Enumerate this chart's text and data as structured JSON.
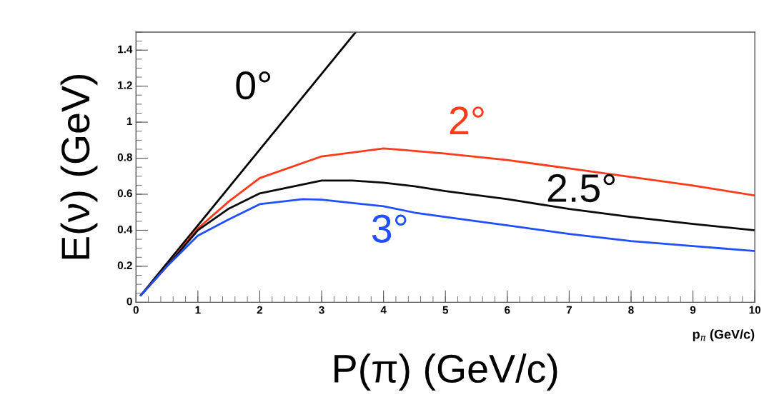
{
  "chart_data": {
    "type": "line",
    "xlabel": "P(π) (GeV/c)",
    "ylabel": "E(ν) (GeV)",
    "annotations": [
      "p$_{π}$ (GeV/c)"
    ],
    "xlim": [
      0,
      10
    ],
    "ylim": [
      0,
      1.5
    ],
    "xticks": [
      0,
      1,
      2,
      3,
      4,
      5,
      6,
      7,
      8,
      9,
      10
    ],
    "yticks": [
      0,
      0.2,
      0.4,
      0.6,
      0.8,
      1,
      1.2,
      1.4
    ],
    "grid": false,
    "legend": false,
    "marker": "none",
    "line_style": "solid",
    "series": [
      {
        "name": "0°",
        "color": "#000000",
        "x": [
          0.08,
          3.55
        ],
        "values": [
          0.04,
          1.5
        ]
      },
      {
        "name": "2°",
        "color": "#ff3a1a",
        "x": [
          0.08,
          0.5,
          1,
          1.5,
          2,
          3,
          4,
          4.3,
          5,
          6,
          7,
          8,
          9,
          10
        ],
        "values": [
          0.04,
          0.2,
          0.41,
          0.56,
          0.69,
          0.81,
          0.854,
          0.846,
          0.826,
          0.79,
          0.743,
          0.696,
          0.648,
          0.593
        ]
      },
      {
        "name": "2.5°",
        "color": "#0a0a0a",
        "x": [
          0.08,
          0.5,
          1,
          1.5,
          2,
          3,
          3.5,
          4,
          4.5,
          5,
          6,
          7,
          8,
          9,
          10
        ],
        "values": [
          0.04,
          0.2,
          0.4,
          0.52,
          0.605,
          0.676,
          0.676,
          0.664,
          0.644,
          0.617,
          0.573,
          0.518,
          0.474,
          0.435,
          0.4
        ]
      },
      {
        "name": "3°",
        "color": "#1f4fff",
        "x": [
          0.08,
          0.5,
          1,
          1.5,
          2,
          2.7,
          3,
          4,
          4.5,
          5,
          6,
          7,
          8,
          9,
          10
        ],
        "values": [
          0.04,
          0.2,
          0.37,
          0.46,
          0.545,
          0.573,
          0.57,
          0.533,
          0.498,
          0.474,
          0.427,
          0.38,
          0.34,
          0.312,
          0.285
        ]
      }
    ]
  }
}
